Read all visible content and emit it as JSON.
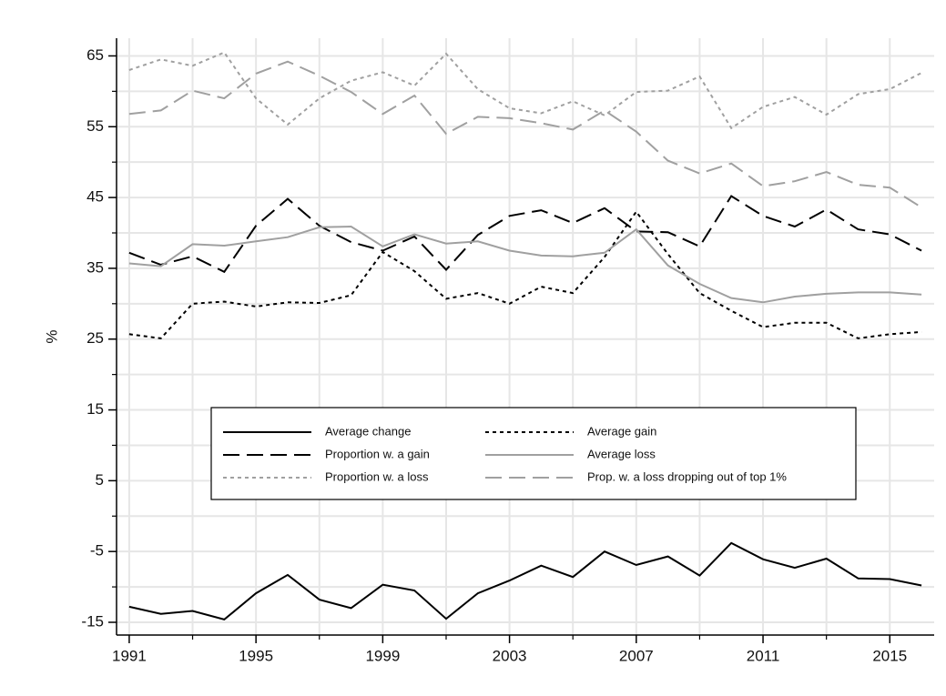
{
  "chart_data": {
    "type": "line",
    "y_label": "%",
    "x": [
      1991,
      1992,
      1993,
      1994,
      1995,
      1996,
      1997,
      1998,
      1999,
      2000,
      2001,
      2002,
      2003,
      2004,
      2005,
      2006,
      2007,
      2008,
      2009,
      2010,
      2011,
      2012,
      2013,
      2014,
      2015,
      2016
    ],
    "xlim": [
      1990.6,
      2016.4
    ],
    "ylim": [
      -16.8,
      67.5
    ],
    "xticks": [
      1991,
      1995,
      1999,
      2003,
      2007,
      2011,
      2015
    ],
    "minor_xticks": [
      1993,
      1997,
      2001,
      2005,
      2009,
      2013
    ],
    "yticks": [
      -15,
      -5,
      5,
      15,
      25,
      35,
      45,
      55,
      65
    ],
    "minor_yticks": [
      -10,
      0,
      10,
      20,
      30,
      40,
      50,
      60
    ],
    "grid": true,
    "series": [
      {
        "name": "Average change",
        "color": "#000000",
        "dash": "none",
        "values": [
          -12.8,
          -13.8,
          -13.4,
          -14.6,
          -10.9,
          -8.3,
          -11.8,
          -13.0,
          -9.7,
          -10.5,
          -14.5,
          -10.9,
          -9.1,
          -7.0,
          -8.6,
          -5.0,
          -6.9,
          -5.7,
          -8.4,
          -3.8,
          -6.1,
          -7.3,
          -6.0,
          -8.8,
          -8.9,
          -9.8
        ]
      },
      {
        "name": "Average gain",
        "color": "#000000",
        "dash": "4 4",
        "values": [
          25.7,
          25.1,
          30.0,
          30.3,
          29.6,
          30.2,
          30.1,
          31.2,
          37.3,
          34.6,
          30.7,
          31.5,
          30.0,
          32.4,
          31.5,
          36.6,
          43.0,
          37.0,
          31.5,
          29.0,
          26.7,
          27.3,
          27.3,
          25.1,
          25.7,
          26.0
        ]
      },
      {
        "name": "Proportion w. a gain",
        "color": "#000000",
        "dash": "18 8",
        "values": [
          37.2,
          35.5,
          36.7,
          34.5,
          41.0,
          44.8,
          41.0,
          38.7,
          37.5,
          39.5,
          34.8,
          39.7,
          42.4,
          43.2,
          41.4,
          43.5,
          40.2,
          40.1,
          38.1,
          45.2,
          42.4,
          40.9,
          43.3,
          40.5,
          39.8,
          37.5
        ]
      },
      {
        "name": "Average loss",
        "color": "#a0a0a0",
        "dash": "none",
        "values": [
          35.7,
          35.3,
          38.4,
          38.2,
          38.8,
          39.4,
          40.8,
          40.9,
          38.1,
          39.8,
          38.5,
          38.8,
          37.5,
          36.8,
          36.7,
          37.2,
          40.5,
          35.4,
          32.8,
          30.8,
          30.2,
          31.0,
          31.4,
          31.6,
          31.6,
          31.3
        ]
      },
      {
        "name": "Proportion w. a loss",
        "color": "#a0a0a0",
        "dash": "4 4",
        "values": [
          63.0,
          64.5,
          63.6,
          65.5,
          59.0,
          55.3,
          59.0,
          61.5,
          62.7,
          60.8,
          65.3,
          60.3,
          57.6,
          56.9,
          58.6,
          56.6,
          59.9,
          60.1,
          62.1,
          54.8,
          57.8,
          59.2,
          56.7,
          59.6,
          60.3,
          62.6
        ]
      },
      {
        "name": "Prop. w. a loss dropping out of top 1%",
        "color": "#a0a0a0",
        "dash": "18 8",
        "values": [
          56.8,
          57.3,
          60.1,
          59.0,
          62.5,
          64.2,
          62.2,
          59.9,
          56.8,
          59.4,
          54.0,
          56.4,
          56.2,
          55.5,
          54.6,
          57.3,
          54.3,
          50.2,
          48.4,
          49.8,
          46.6,
          47.3,
          48.6,
          46.8,
          46.4,
          43.6
        ]
      }
    ]
  }
}
